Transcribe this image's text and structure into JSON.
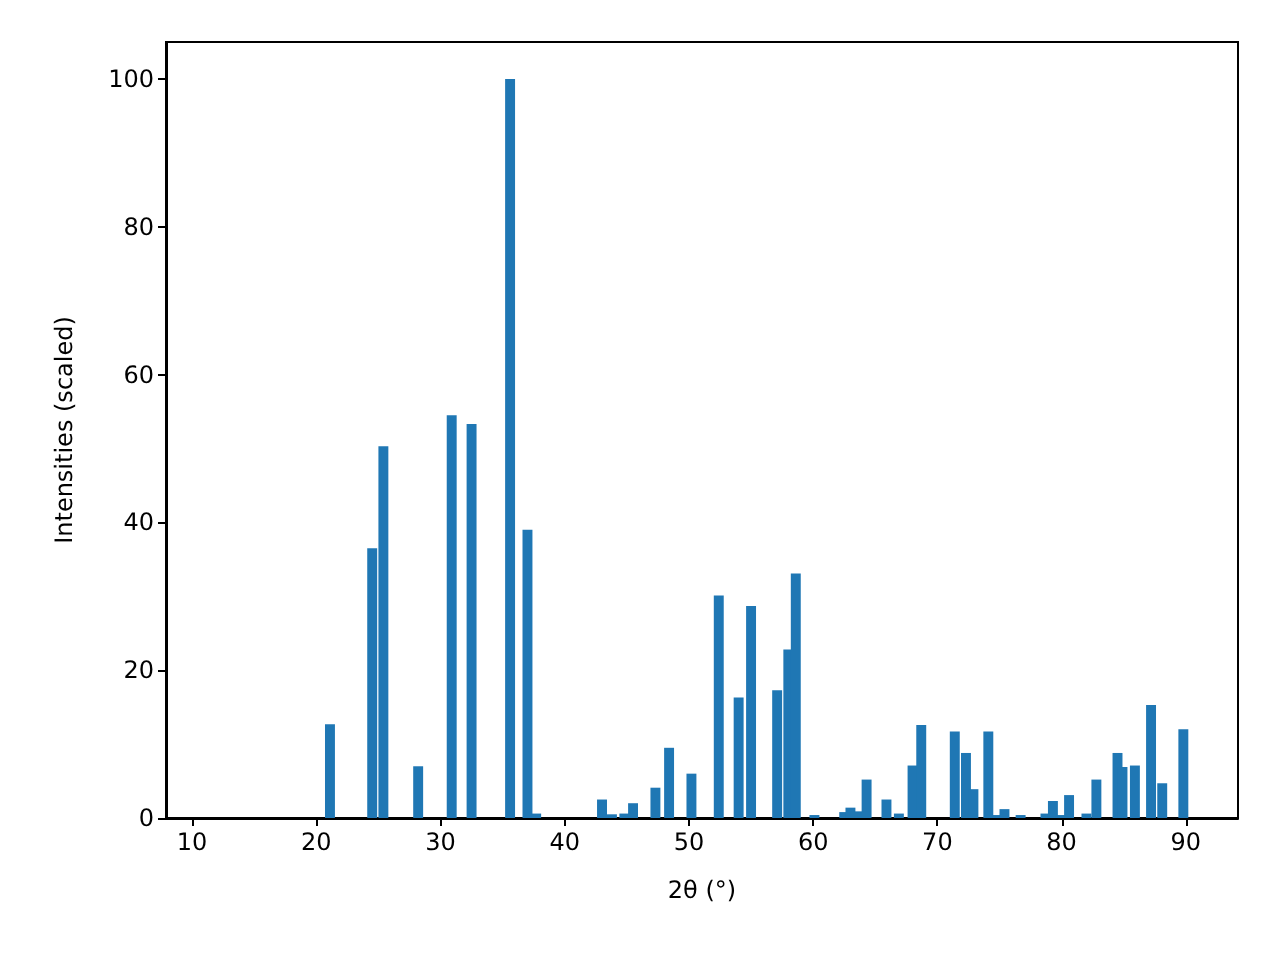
{
  "chart_data": {
    "type": "bar",
    "xlabel": "2θ (°)",
    "ylabel": "Intensities (scaled)",
    "color": "#1f77b4",
    "x": [
      21.1,
      24.5,
      25.4,
      28.2,
      30.9,
      32.5,
      35.6,
      37.0,
      37.7,
      43.0,
      43.8,
      44.8,
      45.5,
      47.3,
      48.4,
      50.2,
      52.4,
      54.0,
      55.0,
      57.1,
      58.0,
      58.6,
      60.1,
      62.5,
      63.0,
      63.7,
      64.3,
      65.9,
      66.9,
      68.0,
      68.7,
      71.4,
      72.3,
      72.9,
      74.1,
      74.8,
      75.4,
      76.7,
      78.7,
      79.3,
      79.9,
      80.6,
      82.0,
      82.8,
      84.5,
      84.9,
      85.9,
      87.2,
      88.1,
      89.8
    ],
    "values": [
      12.7,
      36.5,
      50.3,
      7.0,
      54.5,
      53.3,
      100,
      39.0,
      0.6,
      2.5,
      0.5,
      0.6,
      2.0,
      4.1,
      9.5,
      6.0,
      30.1,
      16.3,
      28.7,
      17.3,
      22.8,
      33.1,
      0.4,
      0.8,
      1.4,
      0.9,
      5.2,
      2.5,
      0.6,
      7.1,
      12.6,
      11.7,
      8.8,
      3.9,
      11.7,
      0.4,
      1.2,
      0.4,
      0.6,
      2.3,
      0.4,
      3.1,
      0.6,
      5.2,
      8.8,
      6.9,
      7.1,
      15.3,
      4.7,
      12.0
    ],
    "xlim": [
      7.9,
      94.2
    ],
    "xticks": [
      10,
      20,
      30,
      40,
      50,
      60,
      70,
      80,
      90
    ],
    "ylim": [
      0,
      105
    ],
    "yticks": [
      0,
      20,
      40,
      60,
      80,
      100
    ],
    "grid": false
  }
}
